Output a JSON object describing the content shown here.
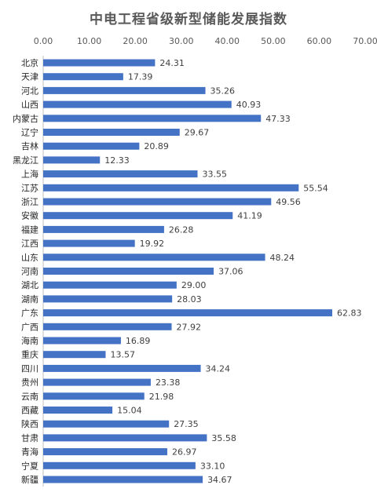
{
  "chart_data": {
    "type": "bar",
    "orientation": "horizontal",
    "title": "中电工程省级新型储能发展指数",
    "xlabel": "",
    "ylabel": "",
    "xlim": [
      0,
      70
    ],
    "x_ticks": [
      "0.00",
      "10.00",
      "20.00",
      "30.00",
      "40.00",
      "50.00",
      "60.00",
      "70.00"
    ],
    "x_tick_values": [
      0,
      10,
      20,
      30,
      40,
      50,
      60,
      70
    ],
    "x_axis_position": "top",
    "grid": false,
    "bar_color": "#4472C4",
    "categories": [
      "北京",
      "天津",
      "河北",
      "山西",
      "内蒙古",
      "辽宁",
      "吉林",
      "黑龙江",
      "上海",
      "江苏",
      "浙江",
      "安徽",
      "福建",
      "江西",
      "山东",
      "河南",
      "湖北",
      "湖南",
      "广东",
      "广西",
      "海南",
      "重庆",
      "四川",
      "贵州",
      "云南",
      "西藏",
      "陕西",
      "甘肃",
      "青海",
      "宁夏",
      "新疆"
    ],
    "values": [
      24.31,
      17.39,
      35.26,
      40.93,
      47.33,
      29.67,
      20.89,
      12.33,
      33.55,
      55.54,
      49.56,
      41.19,
      26.28,
      19.92,
      48.24,
      37.06,
      29.0,
      28.03,
      62.83,
      27.92,
      16.89,
      13.57,
      34.24,
      23.38,
      21.98,
      15.04,
      27.35,
      35.58,
      26.97,
      33.1,
      34.67
    ],
    "value_labels": [
      "24.31",
      "17.39",
      "35.26",
      "40.93",
      "47.33",
      "29.67",
      "20.89",
      "12.33",
      "33.55",
      "55.54",
      "49.56",
      "41.19",
      "26.28",
      "19.92",
      "48.24",
      "37.06",
      "29.00",
      "28.03",
      "62.83",
      "27.92",
      "16.89",
      "13.57",
      "34.24",
      "23.38",
      "21.98",
      "15.04",
      "27.35",
      "35.58",
      "26.97",
      "33.10",
      "34.67"
    ]
  }
}
